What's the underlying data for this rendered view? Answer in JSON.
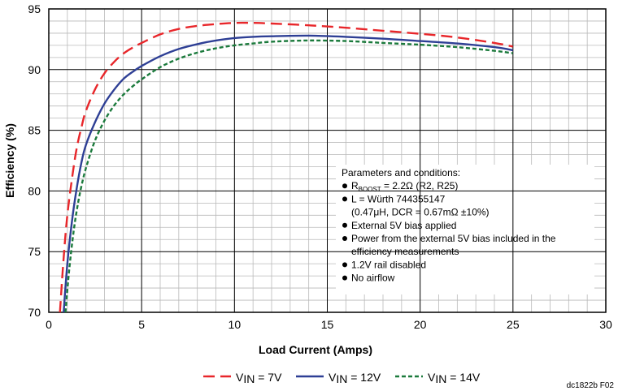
{
  "chart_data": {
    "type": "line",
    "title": "",
    "xlabel": "Load Current (Amps)",
    "ylabel": "Efficiency (%)",
    "xlim": [
      0,
      30
    ],
    "ylim": [
      70,
      95
    ],
    "x_ticks": [
      "0",
      "5",
      "10",
      "15",
      "20",
      "25",
      "30"
    ],
    "y_ticks": [
      "70",
      "75",
      "80",
      "85",
      "90",
      "95"
    ],
    "grid": true,
    "legend_position": "bottom",
    "series": [
      {
        "name_parts": {
          "base": "V",
          "sub": "IN",
          "suffix": " = 7V"
        },
        "color": "#e8262a",
        "dash": "dashed",
        "x": [
          0.6,
          0.8,
          1.0,
          1.25,
          1.5,
          1.75,
          2.0,
          2.5,
          3.0,
          3.5,
          4.0,
          4.5,
          5.0,
          6.0,
          7.0,
          8.0,
          9.0,
          10.0,
          11.0,
          12.0,
          14.0,
          16.0,
          18.0,
          20.0,
          22.0,
          24.0,
          25.0
        ],
        "y": [
          70.0,
          74.5,
          78.0,
          81.0,
          83.5,
          85.2,
          86.6,
          88.4,
          89.7,
          90.6,
          91.3,
          91.8,
          92.2,
          92.9,
          93.35,
          93.6,
          93.75,
          93.85,
          93.85,
          93.8,
          93.65,
          93.45,
          93.2,
          92.95,
          92.65,
          92.2,
          91.9
        ]
      },
      {
        "name_parts": {
          "base": "V",
          "sub": "IN",
          "suffix": " = 12V"
        },
        "color": "#2e3f95",
        "dash": "solid",
        "x": [
          0.8,
          1.0,
          1.25,
          1.5,
          1.75,
          2.0,
          2.5,
          3.0,
          3.5,
          4.0,
          4.5,
          5.0,
          6.0,
          7.0,
          8.0,
          9.0,
          10.0,
          11.0,
          12.0,
          14.0,
          16.0,
          18.0,
          20.0,
          22.0,
          24.0,
          25.0
        ],
        "y": [
          70.0,
          74.0,
          77.5,
          80.2,
          82.3,
          83.8,
          85.7,
          87.2,
          88.3,
          89.2,
          89.8,
          90.3,
          91.1,
          91.7,
          92.1,
          92.4,
          92.6,
          92.7,
          92.75,
          92.8,
          92.7,
          92.55,
          92.35,
          92.15,
          91.85,
          91.6
        ]
      },
      {
        "name_parts": {
          "base": "V",
          "sub": "IN",
          "suffix": " = 14V"
        },
        "color": "#1b7a3c",
        "dash": "dotted",
        "x": [
          0.9,
          1.1,
          1.35,
          1.6,
          1.85,
          2.1,
          2.5,
          3.0,
          3.5,
          4.0,
          4.5,
          5.0,
          6.0,
          7.0,
          8.0,
          9.0,
          10.0,
          11.0,
          12.0,
          14.0,
          16.0,
          18.0,
          20.0,
          22.0,
          24.0,
          25.0
        ],
        "y": [
          70.0,
          73.5,
          76.8,
          79.2,
          81.0,
          82.4,
          84.2,
          85.8,
          87.0,
          87.9,
          88.6,
          89.2,
          90.2,
          90.9,
          91.4,
          91.75,
          92.0,
          92.15,
          92.3,
          92.4,
          92.35,
          92.2,
          92.05,
          91.85,
          91.55,
          91.35
        ]
      }
    ],
    "annotation": {
      "heading": "Parameters and conditions:",
      "items": [
        {
          "base": "R",
          "sub": "BOOST",
          "rest": " = 2.2Ω (R2, R25)"
        },
        {
          "text": "L = Würth 744355147"
        },
        {
          "text": "(0.47μH, DCR = 0.67mΩ ±10%)",
          "continuation": true
        },
        {
          "text": "External 5V bias applied"
        },
        {
          "text": "Power from the external 5V bias included in the"
        },
        {
          "text": "efficiency measurements",
          "continuation": true
        },
        {
          "text": "1.2V rail disabled"
        },
        {
          "text": "No airflow"
        }
      ]
    },
    "figure_id": "dc1822b F02"
  }
}
